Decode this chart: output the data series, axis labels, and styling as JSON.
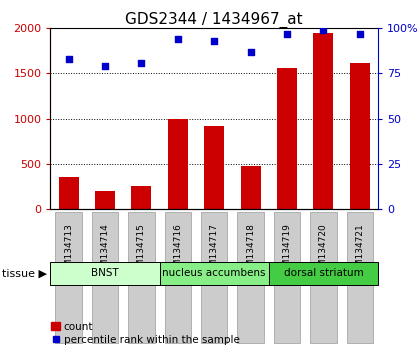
{
  "title": "GDS2344 / 1434967_at",
  "samples": [
    "GSM134713",
    "GSM134714",
    "GSM134715",
    "GSM134716",
    "GSM134717",
    "GSM134718",
    "GSM134719",
    "GSM134720",
    "GSM134721"
  ],
  "counts": [
    350,
    200,
    250,
    1000,
    920,
    480,
    1560,
    1950,
    1620
  ],
  "percentiles": [
    83,
    79,
    81,
    94,
    93,
    87,
    97,
    99,
    97
  ],
  "bar_color": "#cc0000",
  "dot_color": "#0000cc",
  "left_ylim": [
    0,
    2000
  ],
  "right_ylim": [
    0,
    100
  ],
  "left_yticks": [
    0,
    500,
    1000,
    1500,
    2000
  ],
  "right_yticks": [
    0,
    25,
    50,
    75,
    100
  ],
  "right_yticklabels": [
    "0",
    "25",
    "50",
    "75",
    "100%"
  ],
  "tissue_groups": [
    {
      "label": "BNST",
      "indices": [
        0,
        1,
        2
      ],
      "color": "#ccffcc"
    },
    {
      "label": "nucleus accumbens",
      "indices": [
        3,
        4,
        5
      ],
      "color": "#88ee88"
    },
    {
      "label": "dorsal striatum",
      "indices": [
        6,
        7,
        8
      ],
      "color": "#44cc44"
    }
  ],
  "tissue_label": "tissue ▶",
  "legend_count_label": "count",
  "legend_pct_label": "percentile rank within the sample",
  "title_fontsize": 11,
  "axis_label_color_left": "#cc0000",
  "axis_label_color_right": "#0000cc",
  "grid_color": "black",
  "tick_bg_color": "#cccccc",
  "tick_edge_color": "#999999"
}
